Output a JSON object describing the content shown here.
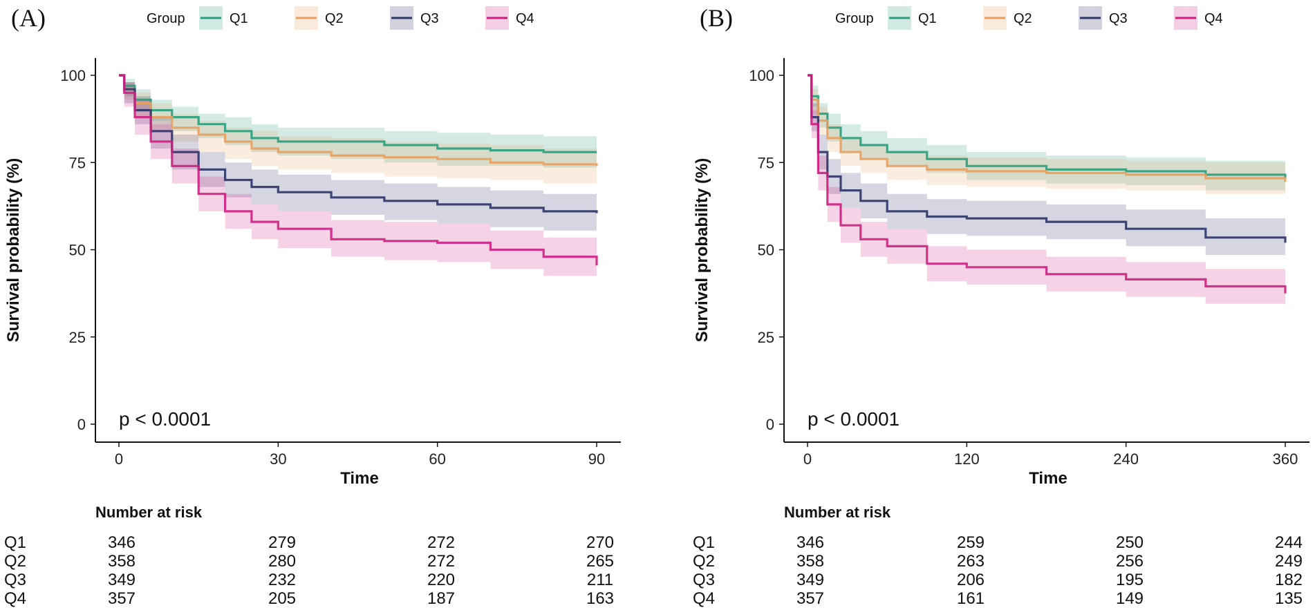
{
  "colors": {
    "Q1": "#2a9d7c",
    "Q2": "#e8a060",
    "Q3": "#2c3468",
    "Q4": "#cc1f80"
  },
  "chart_data": [
    {
      "type": "line",
      "panel_label": "(A)",
      "legend_title": "Group",
      "xlabel": "Time",
      "ylabel": "Survival probability (%)",
      "xlim": [
        0,
        90
      ],
      "ylim": [
        0,
        100
      ],
      "xticks": [
        0,
        30,
        60,
        90
      ],
      "yticks": [
        0,
        25,
        50,
        75,
        100
      ],
      "pvalue": "p < 0.0001",
      "risk_title": "Number at risk",
      "series": [
        {
          "name": "Q1",
          "x": [
            0,
            1,
            3,
            6,
            10,
            15,
            20,
            25,
            30,
            40,
            50,
            60,
            70,
            80,
            90
          ],
          "values": [
            100,
            97,
            93,
            90,
            88,
            86,
            84,
            82,
            81,
            81,
            80,
            79,
            78.5,
            78,
            78
          ],
          "lower": [
            100,
            94,
            90,
            87,
            84,
            82,
            80,
            78,
            77,
            76,
            75,
            74,
            74,
            73.5,
            73
          ],
          "upper": [
            100,
            99,
            96,
            93,
            91,
            89,
            88,
            86,
            85,
            85,
            84,
            83.5,
            83,
            82.5,
            82.5
          ],
          "risk": [
            346,
            279,
            272,
            270
          ]
        },
        {
          "name": "Q2",
          "x": [
            0,
            1,
            3,
            6,
            10,
            15,
            20,
            25,
            30,
            40,
            50,
            60,
            70,
            80,
            90
          ],
          "values": [
            100,
            96,
            92,
            88,
            85,
            83,
            81,
            79,
            78,
            77,
            76.5,
            76,
            75,
            74.5,
            74
          ],
          "lower": [
            100,
            93,
            88,
            84,
            81,
            78,
            76,
            74,
            73,
            72,
            71,
            70.5,
            70,
            69,
            69
          ],
          "upper": [
            100,
            98,
            95,
            92,
            89,
            87,
            85,
            84,
            82.5,
            82,
            81,
            80.5,
            80,
            79,
            79
          ],
          "risk": [
            358,
            280,
            272,
            265
          ]
        },
        {
          "name": "Q3",
          "x": [
            0,
            1,
            3,
            6,
            10,
            15,
            20,
            25,
            30,
            40,
            50,
            60,
            70,
            80,
            90
          ],
          "values": [
            100,
            96,
            90,
            84,
            78,
            73,
            70,
            68,
            66.5,
            65,
            64,
            63,
            62,
            61,
            60.5
          ],
          "lower": [
            100,
            92,
            86,
            79,
            73,
            68,
            65,
            63,
            61,
            60,
            58.5,
            57.5,
            56.5,
            55.5,
            55
          ],
          "upper": [
            100,
            98,
            94,
            88,
            83,
            78,
            75,
            73,
            71.5,
            70,
            69,
            68,
            67,
            66,
            65.5
          ],
          "risk": [
            349,
            232,
            220,
            211
          ]
        },
        {
          "name": "Q4",
          "x": [
            0,
            1,
            3,
            6,
            10,
            15,
            20,
            25,
            30,
            40,
            50,
            60,
            70,
            80,
            90
          ],
          "values": [
            100,
            95,
            88,
            81,
            74,
            66,
            61,
            58,
            56,
            53,
            52.5,
            52,
            50,
            48,
            45.5
          ],
          "lower": [
            100,
            91,
            83,
            76,
            69,
            61,
            56,
            53,
            50.5,
            48,
            47,
            46.5,
            44.5,
            42.5,
            41
          ],
          "upper": [
            100,
            98,
            93,
            86,
            79,
            71,
            66,
            63,
            61,
            58.5,
            58,
            57.5,
            55.5,
            53.5,
            51
          ],
          "risk": [
            357,
            205,
            187,
            163
          ]
        }
      ]
    },
    {
      "type": "line",
      "panel_label": "(B)",
      "legend_title": "Group",
      "xlabel": "Time",
      "ylabel": "Survival probability (%)",
      "xlim": [
        0,
        360
      ],
      "ylim": [
        0,
        100
      ],
      "xticks": [
        0,
        120,
        240,
        360
      ],
      "yticks": [
        0,
        25,
        50,
        75,
        100
      ],
      "pvalue": "p < 0.0001",
      "risk_title": "Number at risk",
      "series": [
        {
          "name": "Q1",
          "x": [
            0,
            3,
            8,
            15,
            25,
            40,
            60,
            90,
            120,
            180,
            240,
            300,
            360
          ],
          "values": [
            100,
            94,
            89,
            85,
            82,
            80,
            78,
            76,
            74,
            73,
            72.5,
            71.5,
            70.5
          ],
          "lower": [
            100,
            91,
            85,
            81,
            78,
            76,
            74,
            72,
            70,
            69,
            68.5,
            67,
            66
          ],
          "upper": [
            100,
            97,
            92,
            89,
            86,
            84,
            82,
            80,
            78,
            77,
            76.5,
            75.5,
            75
          ],
          "risk": [
            346,
            259,
            250,
            244
          ]
        },
        {
          "name": "Q2",
          "x": [
            0,
            3,
            8,
            15,
            25,
            40,
            60,
            90,
            120,
            180,
            240,
            300,
            360
          ],
          "values": [
            100,
            93,
            87,
            82,
            78,
            76,
            74,
            73,
            72.5,
            72,
            71.5,
            70.5,
            69.5
          ],
          "lower": [
            100,
            89,
            83,
            78,
            74,
            72,
            70,
            68.5,
            68,
            67.5,
            67,
            66,
            65
          ],
          "upper": [
            100,
            96,
            91,
            86,
            82,
            80,
            78,
            77,
            76.5,
            76,
            75.5,
            75,
            74
          ],
          "risk": [
            358,
            263,
            256,
            249
          ]
        },
        {
          "name": "Q3",
          "x": [
            0,
            3,
            8,
            15,
            25,
            40,
            60,
            90,
            120,
            180,
            240,
            300,
            360
          ],
          "values": [
            100,
            88,
            78,
            71,
            67,
            64,
            61,
            59.5,
            59,
            58,
            56,
            53.5,
            52
          ],
          "lower": [
            100,
            84,
            73,
            66,
            62,
            59,
            56,
            54.5,
            54,
            53,
            51,
            48.5,
            47
          ],
          "upper": [
            100,
            92,
            83,
            76,
            72,
            69,
            66,
            64.5,
            64,
            63,
            61.5,
            59,
            57.5
          ],
          "risk": [
            349,
            206,
            195,
            182
          ]
        },
        {
          "name": "Q4",
          "x": [
            0,
            3,
            8,
            15,
            25,
            40,
            60,
            90,
            120,
            180,
            240,
            300,
            360
          ],
          "values": [
            100,
            86,
            72,
            63,
            57,
            53,
            51,
            46,
            45,
            43,
            41.5,
            39.5,
            37.5
          ],
          "lower": [
            100,
            82,
            67,
            58,
            52,
            48,
            46,
            41,
            40,
            38,
            36.5,
            34.5,
            33
          ],
          "upper": [
            100,
            90,
            77,
            68,
            62,
            58,
            56,
            51,
            50,
            48,
            46.5,
            44.5,
            42.5
          ],
          "risk": [
            357,
            161,
            149,
            135
          ]
        }
      ]
    }
  ]
}
